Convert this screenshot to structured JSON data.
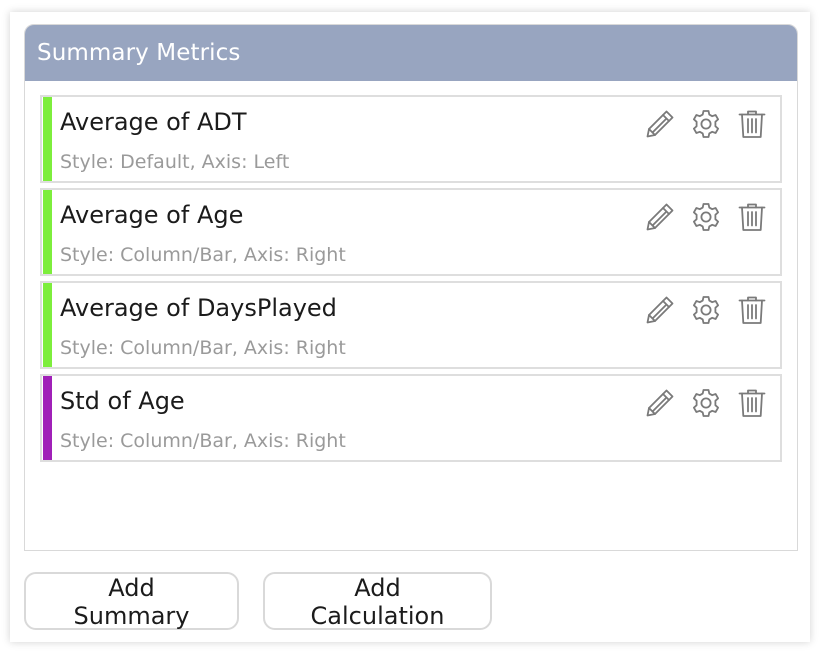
{
  "panel": {
    "title": "Summary Metrics"
  },
  "metrics": [
    {
      "name": "Average of ADT",
      "description": "Style: Default, Axis: Left",
      "color": "#7dee3c"
    },
    {
      "name": "Average of Age",
      "description": "Style: Column/Bar, Axis: Right",
      "color": "#7dee3c"
    },
    {
      "name": "Average of DaysPlayed",
      "description": "Style: Column/Bar, Axis: Right",
      "color": "#7dee3c"
    },
    {
      "name": "Std of Age",
      "description": "Style: Column/Bar, Axis: Right",
      "color": "#a020b8"
    }
  ],
  "icons": {
    "edit": "pencil-icon",
    "settings": "gear-icon",
    "delete": "trash-icon"
  },
  "footer": {
    "add_summary_label": "Add Summary",
    "add_calculation_label": "Add Calculation"
  }
}
